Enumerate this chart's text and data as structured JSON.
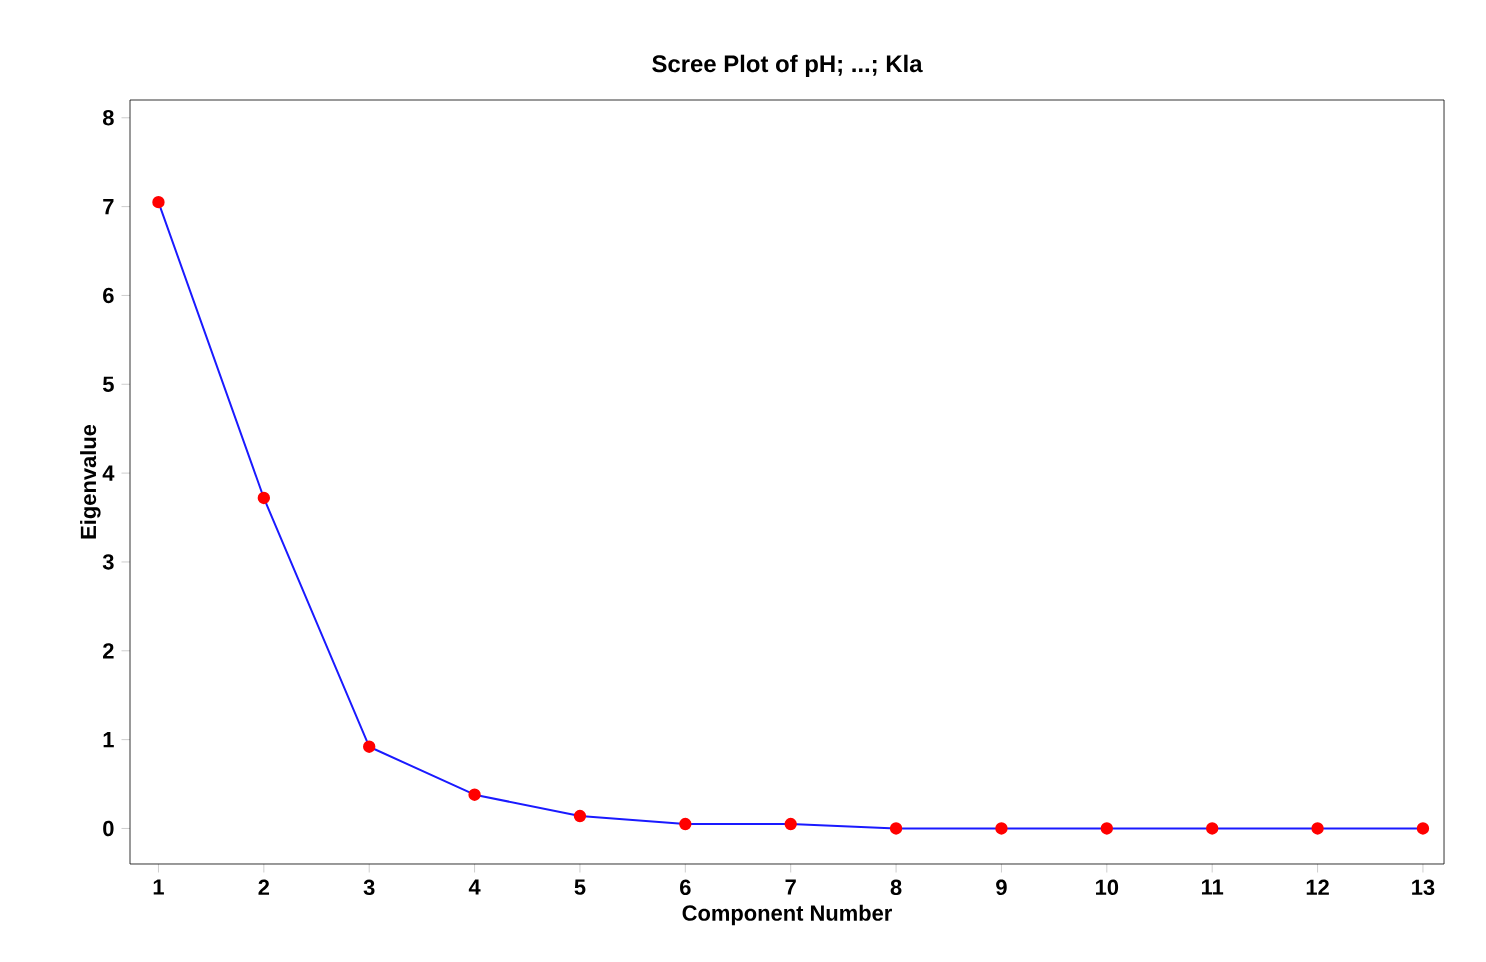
{
  "chart_data": {
    "type": "line",
    "title": "Scree Plot of pH; ...; Kla",
    "xlabel": "Component Number",
    "ylabel": "Eigenvalue",
    "x": [
      1,
      2,
      3,
      4,
      5,
      6,
      7,
      8,
      9,
      10,
      11,
      12,
      13
    ],
    "series": [
      {
        "color": "#1a1aff",
        "values": [
          7.05,
          3.72,
          0.92,
          0.38,
          0.14,
          0.05,
          0.05,
          0,
          0,
          0,
          0,
          0,
          0
        ]
      }
    ],
    "xlim": [
      0.73,
      13.2
    ],
    "ylim": [
      -0.4,
      8.2
    ],
    "xticks": [
      1,
      2,
      3,
      4,
      5,
      6,
      7,
      8,
      9,
      10,
      11,
      12,
      13
    ],
    "yticks": [
      0,
      1,
      2,
      3,
      4,
      5,
      6,
      7,
      8
    ],
    "marker": "circle",
    "line_style": "solid",
    "grid": false
  }
}
